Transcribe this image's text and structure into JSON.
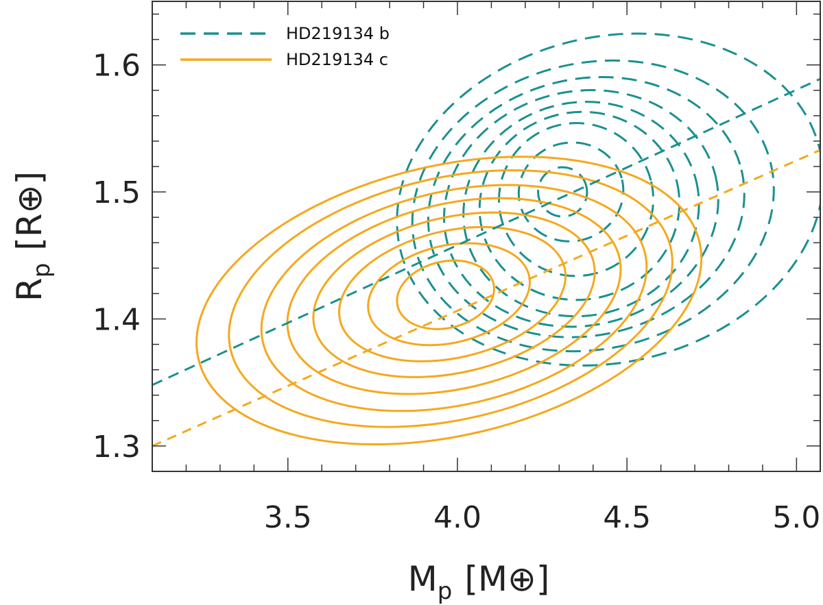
{
  "chart_data": {
    "type": "line",
    "title": "",
    "xlabel": {
      "main": "M",
      "sub": "p",
      "unit": "[M⊕]"
    },
    "ylabel": {
      "main": "R",
      "sub": "p",
      "unit": "[R⊕]"
    },
    "xlim": [
      3.1,
      5.07
    ],
    "ylim": [
      1.28,
      1.65
    ],
    "xticks": [
      {
        "value": 3.5,
        "label": "3.5"
      },
      {
        "value": 4.0,
        "label": "4.0"
      },
      {
        "value": 4.5,
        "label": "4.5"
      },
      {
        "value": 5.0,
        "label": "5.0"
      }
    ],
    "yticks": [
      {
        "value": 1.3,
        "label": "1.3"
      },
      {
        "value": 1.4,
        "label": "1.4"
      },
      {
        "value": 1.5,
        "label": "1.5"
      },
      {
        "value": 1.6,
        "label": "1.6"
      }
    ],
    "xminor_step": 0.1,
    "yminor_step": 0.02,
    "grid": false,
    "legend_position": "top-left",
    "colors": {
      "b": "#1a9090",
      "c": "#f5a81c",
      "axis": "#333333"
    },
    "series": [
      {
        "name": "HD219134 b",
        "style": "dashed",
        "center": [
          4.3,
          1.5
        ],
        "contours": [
          {
            "x_extent": [
              3.8,
              5.1
            ],
            "y_extent": [
              1.362,
              1.626
            ]
          },
          {
            "x_extent": [
              3.85,
              4.95
            ],
            "y_extent": [
              1.373,
              1.605
            ]
          },
          {
            "x_extent": [
              3.9,
              4.86
            ],
            "y_extent": [
              1.384,
              1.592
            ]
          },
          {
            "x_extent": [
              3.95,
              4.78
            ],
            "y_extent": [
              1.392,
              1.582
            ]
          },
          {
            "x_extent": [
              4.01,
              4.72
            ],
            "y_extent": [
              1.4,
              1.573
            ]
          },
          {
            "x_extent": [
              4.06,
              4.66
            ],
            "y_extent": [
              1.413,
              1.565
            ]
          },
          {
            "x_extent": [
              4.12,
              4.58
            ],
            "y_extent": [
              1.432,
              1.556
            ]
          },
          {
            "x_extent": [
              4.18,
              4.49
            ],
            "y_extent": [
              1.46,
              1.54
            ]
          },
          {
            "x_extent": [
              4.24,
              4.38
            ],
            "y_extent": [
              1.48,
              1.52
            ]
          }
        ],
        "trend_line": {
          "x": [
            3.1,
            5.07
          ],
          "y": [
            1.348,
            1.589
          ]
        }
      },
      {
        "name": "HD219134 c",
        "style": "solid",
        "center": [
          3.95,
          1.412
        ],
        "contours": [
          {
            "x_extent": [
              3.2,
              4.75
            ],
            "y_extent": [
              1.305,
              1.524
            ]
          },
          {
            "x_extent": [
              3.3,
              4.66
            ],
            "y_extent": [
              1.318,
              1.514
            ]
          },
          {
            "x_extent": [
              3.4,
              4.58
            ],
            "y_extent": [
              1.33,
              1.503
            ]
          },
          {
            "x_extent": [
              3.48,
              4.5
            ],
            "y_extent": [
              1.343,
              1.493
            ]
          },
          {
            "x_extent": [
              3.56,
              4.42
            ],
            "y_extent": [
              1.356,
              1.482
            ]
          },
          {
            "x_extent": [
              3.64,
              4.33
            ],
            "y_extent": [
              1.368,
              1.471
            ]
          },
          {
            "x_extent": [
              3.73,
              4.22
            ],
            "y_extent": [
              1.38,
              1.459
            ]
          },
          {
            "x_extent": [
              3.82,
              4.11
            ],
            "y_extent": [
              1.392,
              1.446
            ]
          }
        ],
        "trend_line": {
          "x": [
            3.1,
            5.07
          ],
          "y": [
            1.3,
            1.533
          ]
        }
      }
    ]
  }
}
